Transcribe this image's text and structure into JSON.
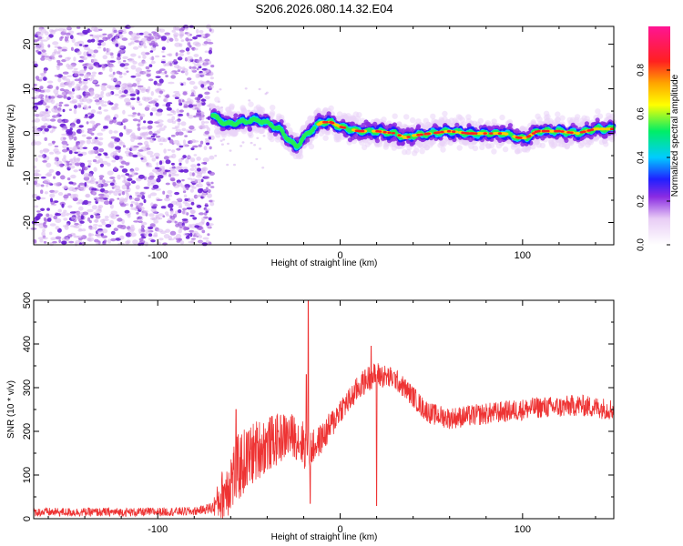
{
  "title": "S206.2026.080.14.32.E04",
  "colors": {
    "snr_line": "#ee3333",
    "scatter": "#8a2be2",
    "axis": "#000000"
  },
  "chart_data": [
    {
      "type": "heatmap",
      "xlabel": "Height of straight line (km)",
      "ylabel": "Frequency (Hz)",
      "xlim": [
        -168,
        150
      ],
      "ylim": [
        -25,
        24
      ],
      "xticks": [
        -100,
        0,
        100
      ],
      "xtick_labels": [
        "-100",
        "0",
        "100"
      ],
      "yticks": [
        -20,
        -10,
        0,
        10,
        20
      ],
      "ytick_labels": [
        "-20",
        "-10",
        "0",
        "10",
        "20"
      ],
      "noise_region_x": [
        -168,
        -70
      ],
      "ridge": {
        "x": [
          -70,
          -62,
          -55,
          -45,
          -38,
          -32,
          -27,
          -24,
          -20,
          -15,
          -10,
          -5,
          0,
          10,
          20,
          30,
          36,
          40,
          50,
          60,
          70,
          80,
          90,
          98,
          102,
          108,
          120,
          130,
          140,
          150
        ],
        "y": [
          4,
          2,
          2.5,
          3,
          2,
          0.5,
          -2,
          -3,
          -1,
          1,
          2.5,
          2.5,
          1.5,
          0.5,
          0.5,
          0,
          -1,
          -0.5,
          0,
          0.5,
          0,
          0,
          0,
          -1,
          -1,
          0.5,
          0.5,
          0,
          1,
          1
        ]
      },
      "colorbar": {
        "label": "Normalized spectral amplitude",
        "range": [
          0,
          1
        ],
        "ticks": [
          0,
          0.2,
          0.4,
          0.6,
          0.8
        ],
        "tick_labels": [
          "0.0",
          "0.2",
          "0.4",
          "0.6",
          "0.8"
        ]
      }
    },
    {
      "type": "line",
      "xlabel": "Height of straight line (km)",
      "ylabel": "SNR (10 * v/v)",
      "xlim": [
        -168,
        150
      ],
      "ylim": [
        0,
        500
      ],
      "xticks": [
        -100,
        0,
        100
      ],
      "xtick_labels": [
        "-100",
        "0",
        "100"
      ],
      "yticks": [
        0,
        100,
        200,
        300,
        400,
        500
      ],
      "ytick_labels": [
        "0",
        "100",
        "200",
        "300",
        "400",
        "500"
      ],
      "envelope": {
        "x": [
          -168,
          -140,
          -110,
          -80,
          -70,
          -65,
          -60,
          -55,
          -50,
          -45,
          -40,
          -35,
          -30,
          -25,
          -20,
          -18,
          -16,
          -12,
          -8,
          -4,
          0,
          5,
          10,
          15,
          20,
          25,
          30,
          35,
          40,
          45,
          50,
          60,
          70,
          80,
          90,
          100,
          110,
          120,
          130,
          140,
          150
        ],
        "y": [
          15,
          15,
          15,
          17,
          25,
          50,
          90,
          120,
          140,
          160,
          170,
          180,
          190,
          190,
          170,
          150,
          160,
          175,
          195,
          220,
          250,
          270,
          300,
          320,
          330,
          325,
          320,
          300,
          280,
          255,
          240,
          230,
          235,
          240,
          245,
          250,
          255,
          255,
          260,
          255,
          250
        ]
      },
      "amplitude": {
        "x": [
          -168,
          -75,
          -70,
          -65,
          -60,
          -55,
          -50,
          -45,
          -40,
          -35,
          -30,
          -25,
          -20,
          -15,
          -10,
          -5,
          0,
          10,
          20,
          30,
          40,
          60,
          100,
          150
        ],
        "y": [
          10,
          10,
          15,
          60,
          80,
          80,
          75,
          70,
          65,
          60,
          55,
          50,
          55,
          40,
          35,
          35,
          30,
          30,
          30,
          25,
          25,
          25,
          25,
          25
        ]
      },
      "spikes": [
        {
          "x": -17.5,
          "y": 500
        },
        {
          "x": -18.5,
          "y": 330
        },
        {
          "x": -16.5,
          "y": 35
        },
        {
          "x": -57,
          "y": 250
        },
        {
          "x": 17,
          "y": 395
        },
        {
          "x": 20,
          "y": 30
        }
      ]
    }
  ]
}
